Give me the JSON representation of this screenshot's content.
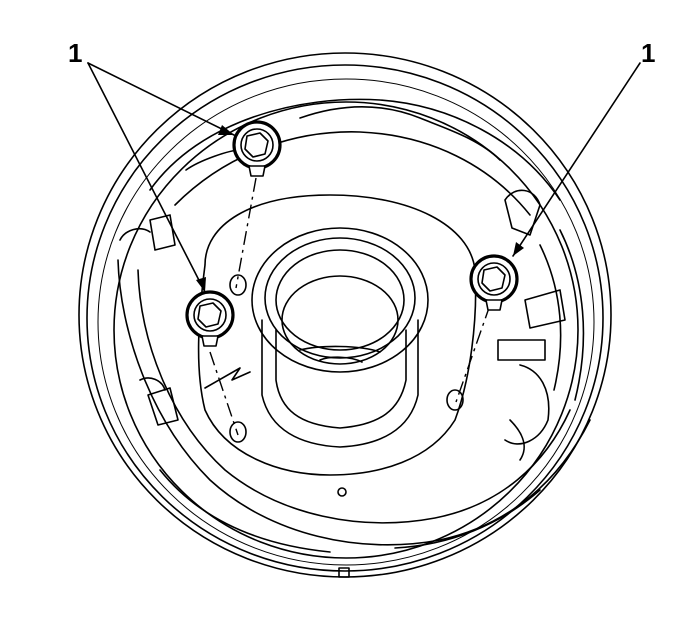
{
  "diagram": {
    "callouts": [
      {
        "id": "left",
        "label": "1"
      },
      {
        "id": "right",
        "label": "1"
      }
    ],
    "components": [
      {
        "name": "brake-backing-plate"
      },
      {
        "name": "wheel-bearing-hub-opening"
      },
      {
        "name": "backing-plate-bolt",
        "count": 3
      }
    ],
    "colors": {
      "line": "#000000",
      "background": "#ffffff"
    }
  }
}
